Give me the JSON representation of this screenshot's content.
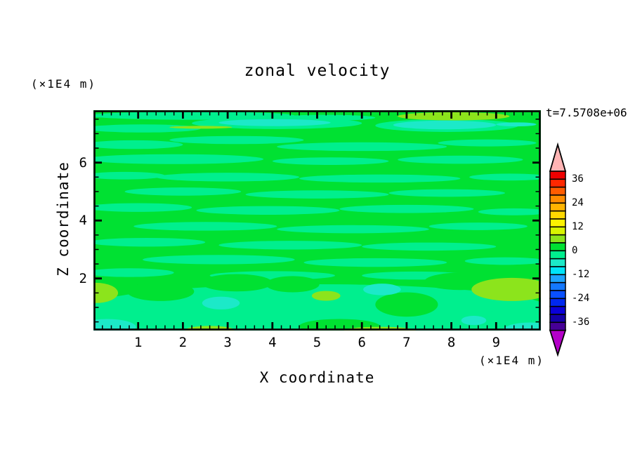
{
  "figure": {
    "title": "zonal velocity",
    "time_label": "t=7.5708e+06"
  },
  "axes": {
    "x": {
      "label": "X coordinate",
      "unit_label": "(×1E4 m)",
      "range": [
        0,
        10
      ],
      "major_ticks": [
        1,
        2,
        3,
        4,
        5,
        6,
        7,
        8,
        9
      ],
      "minor_step": 0.2
    },
    "z": {
      "label": "Z coordinate",
      "unit_label": "(×1E4 m)",
      "range": [
        0.2,
        7.81
      ],
      "major_ticks": [
        2,
        4,
        6
      ],
      "minor_step": 0.5
    }
  },
  "colorbar": {
    "tick_labels": [
      "36",
      "24",
      "12",
      "0",
      "-12",
      "-24",
      "-36"
    ],
    "level_min": -40,
    "level_max": 40,
    "level_step": 4,
    "segment_colors": [
      "#ee0000",
      "#ff2800",
      "#ff5c00",
      "#ff8c00",
      "#ffb400",
      "#ffd800",
      "#fdf200",
      "#d8f400",
      "#8ce41c",
      "#00e132",
      "#00ef8e",
      "#1ce9c8",
      "#00e4f8",
      "#1ea4ff",
      "#1478ff",
      "#0a50ff",
      "#0028f0",
      "#0a00d8",
      "#1400a8",
      "#460096"
    ],
    "over_arrow_color": "#ffb4b4",
    "under_arrow_color": "#b400c8"
  },
  "chart_data": {
    "type": "heatmap",
    "subtype": "filled_contour",
    "title": "zonal velocity",
    "xlabel": "X coordinate",
    "ylabel": "Z coordinate",
    "x_range": [
      0,
      10
    ],
    "z_range": [
      0.2,
      7.81
    ],
    "contour_interval": 4,
    "level_range": [
      -40,
      40
    ],
    "background_level_band": [
      0,
      4
    ],
    "patches_note": "elliptical filled-contour features; x,z,rx,rz in data units; level = lower bound of 4-wide band",
    "patches": [
      {
        "x": 2.2,
        "z": 7.62,
        "rx": 2.3,
        "rz": 0.14,
        "level": -4
      },
      {
        "x": 5.2,
        "z": 7.55,
        "rx": 1.1,
        "rz": 0.1,
        "level": -4
      },
      {
        "x": 1.1,
        "z": 7.18,
        "rx": 1.3,
        "rz": 0.14,
        "level": -4
      },
      {
        "x": 4.1,
        "z": 7.36,
        "rx": 1.9,
        "rz": 0.2,
        "level": -4
      },
      {
        "x": 7.9,
        "z": 7.28,
        "rx": 1.6,
        "rz": 0.22,
        "level": -4
      },
      {
        "x": 0.9,
        "z": 6.62,
        "rx": 1.1,
        "rz": 0.15,
        "level": -4
      },
      {
        "x": 3.2,
        "z": 6.78,
        "rx": 1.5,
        "rz": 0.14,
        "level": -4
      },
      {
        "x": 6.0,
        "z": 6.55,
        "rx": 1.9,
        "rz": 0.15,
        "level": -4
      },
      {
        "x": 8.8,
        "z": 6.68,
        "rx": 1.1,
        "rz": 0.12,
        "level": -4
      },
      {
        "x": 1.8,
        "z": 6.12,
        "rx": 2.0,
        "rz": 0.17,
        "level": -4
      },
      {
        "x": 5.3,
        "z": 6.05,
        "rx": 1.3,
        "rz": 0.13,
        "level": -4
      },
      {
        "x": 8.2,
        "z": 6.1,
        "rx": 1.4,
        "rz": 0.14,
        "level": -4
      },
      {
        "x": 0.7,
        "z": 5.55,
        "rx": 0.9,
        "rz": 0.13,
        "level": -4
      },
      {
        "x": 3.0,
        "z": 5.5,
        "rx": 1.6,
        "rz": 0.15,
        "level": -4
      },
      {
        "x": 6.4,
        "z": 5.45,
        "rx": 1.8,
        "rz": 0.14,
        "level": -4
      },
      {
        "x": 9.3,
        "z": 5.5,
        "rx": 0.9,
        "rz": 0.12,
        "level": -4
      },
      {
        "x": 2.0,
        "z": 5.0,
        "rx": 1.3,
        "rz": 0.14,
        "level": -4
      },
      {
        "x": 5.0,
        "z": 4.9,
        "rx": 1.6,
        "rz": 0.14,
        "level": -4
      },
      {
        "x": 7.9,
        "z": 4.95,
        "rx": 1.3,
        "rz": 0.13,
        "level": -4
      },
      {
        "x": 1.0,
        "z": 4.45,
        "rx": 1.2,
        "rz": 0.15,
        "level": -4
      },
      {
        "x": 3.9,
        "z": 4.35,
        "rx": 1.6,
        "rz": 0.15,
        "level": -4
      },
      {
        "x": 7.0,
        "z": 4.4,
        "rx": 1.5,
        "rz": 0.14,
        "level": -4
      },
      {
        "x": 9.4,
        "z": 4.3,
        "rx": 0.8,
        "rz": 0.12,
        "level": -4
      },
      {
        "x": 2.5,
        "z": 3.8,
        "rx": 1.6,
        "rz": 0.15,
        "level": -4
      },
      {
        "x": 5.8,
        "z": 3.7,
        "rx": 1.7,
        "rz": 0.14,
        "level": -4
      },
      {
        "x": 8.6,
        "z": 3.8,
        "rx": 1.1,
        "rz": 0.13,
        "level": -4
      },
      {
        "x": 1.2,
        "z": 3.25,
        "rx": 1.3,
        "rz": 0.15,
        "level": -4
      },
      {
        "x": 4.4,
        "z": 3.15,
        "rx": 1.6,
        "rz": 0.15,
        "level": -4
      },
      {
        "x": 7.5,
        "z": 3.1,
        "rx": 1.5,
        "rz": 0.14,
        "level": -4
      },
      {
        "x": 2.8,
        "z": 2.65,
        "rx": 1.7,
        "rz": 0.16,
        "level": -4
      },
      {
        "x": 6.3,
        "z": 2.55,
        "rx": 1.6,
        "rz": 0.15,
        "level": -4
      },
      {
        "x": 9.2,
        "z": 2.6,
        "rx": 0.9,
        "rz": 0.13,
        "level": -4
      },
      {
        "x": 0.8,
        "z": 2.2,
        "rx": 1.0,
        "rz": 0.15,
        "level": -4
      },
      {
        "x": 4.0,
        "z": 2.1,
        "rx": 1.4,
        "rz": 0.15,
        "level": -4
      },
      {
        "x": 7.2,
        "z": 2.1,
        "rx": 1.2,
        "rz": 0.14,
        "level": -4
      },
      {
        "x": 5.0,
        "z": 0.95,
        "rx": 5.2,
        "rz": 0.85,
        "level": -4
      },
      {
        "x": 5.0,
        "z": 0.5,
        "rx": 5.6,
        "rz": 0.5,
        "level": -4
      },
      {
        "x": 1.5,
        "z": 1.55,
        "rx": 0.75,
        "rz": 0.33,
        "level": 0
      },
      {
        "x": 3.2,
        "z": 1.85,
        "rx": 0.8,
        "rz": 0.3,
        "level": 0
      },
      {
        "x": 4.45,
        "z": 1.8,
        "rx": 0.6,
        "rz": 0.28,
        "level": 0
      },
      {
        "x": 7.0,
        "z": 1.1,
        "rx": 0.7,
        "rz": 0.42,
        "level": 0
      },
      {
        "x": 8.2,
        "z": 1.9,
        "rx": 0.8,
        "rz": 0.3,
        "level": 0
      },
      {
        "x": 5.5,
        "z": 0.35,
        "rx": 0.9,
        "rz": 0.25,
        "level": 0
      },
      {
        "x": 8.05,
        "z": 7.6,
        "rx": 1.25,
        "rz": 0.14,
        "level": 4
      },
      {
        "x": 3.65,
        "z": 7.82,
        "rx": 0.6,
        "rz": 0.08,
        "level": 4
      },
      {
        "x": 3.5,
        "z": 7.84,
        "rx": 0.22,
        "rz": 0.05,
        "level": 8
      },
      {
        "x": 2.4,
        "z": 7.22,
        "rx": 0.7,
        "rz": 0.05,
        "level": 4
      },
      {
        "x": 0.05,
        "z": 1.5,
        "rx": 0.5,
        "rz": 0.35,
        "level": 4
      },
      {
        "x": 9.35,
        "z": 1.62,
        "rx": 0.9,
        "rz": 0.4,
        "level": 4
      },
      {
        "x": 5.2,
        "z": 1.4,
        "rx": 0.32,
        "rz": 0.17,
        "level": 4
      },
      {
        "x": 2.6,
        "z": 0.22,
        "rx": 0.55,
        "rz": 0.14,
        "level": 4
      },
      {
        "x": 6.4,
        "z": 0.2,
        "rx": 0.8,
        "rz": 0.13,
        "level": 4
      },
      {
        "x": 6.6,
        "z": 0.16,
        "rx": 0.32,
        "rz": 0.08,
        "level": 8
      },
      {
        "x": 2.85,
        "z": 1.15,
        "rx": 0.42,
        "rz": 0.22,
        "level": -8
      },
      {
        "x": 6.45,
        "z": 1.62,
        "rx": 0.42,
        "rz": 0.2,
        "level": -8
      },
      {
        "x": 8.5,
        "z": 0.55,
        "rx": 0.28,
        "rz": 0.16,
        "level": -8
      },
      {
        "x": 9.75,
        "z": 0.2,
        "rx": 0.6,
        "rz": 0.28,
        "level": -8
      },
      {
        "x": 0.3,
        "z": 0.32,
        "rx": 0.65,
        "rz": 0.28,
        "level": -8
      },
      {
        "x": 4.05,
        "z": 7.38,
        "rx": 1.25,
        "rz": 0.12,
        "level": -8
      },
      {
        "x": 7.85,
        "z": 7.3,
        "rx": 1.15,
        "rz": 0.15,
        "level": -8
      },
      {
        "x": 9.45,
        "z": 7.32,
        "rx": 0.45,
        "rz": 0.07,
        "level": -8
      }
    ]
  }
}
